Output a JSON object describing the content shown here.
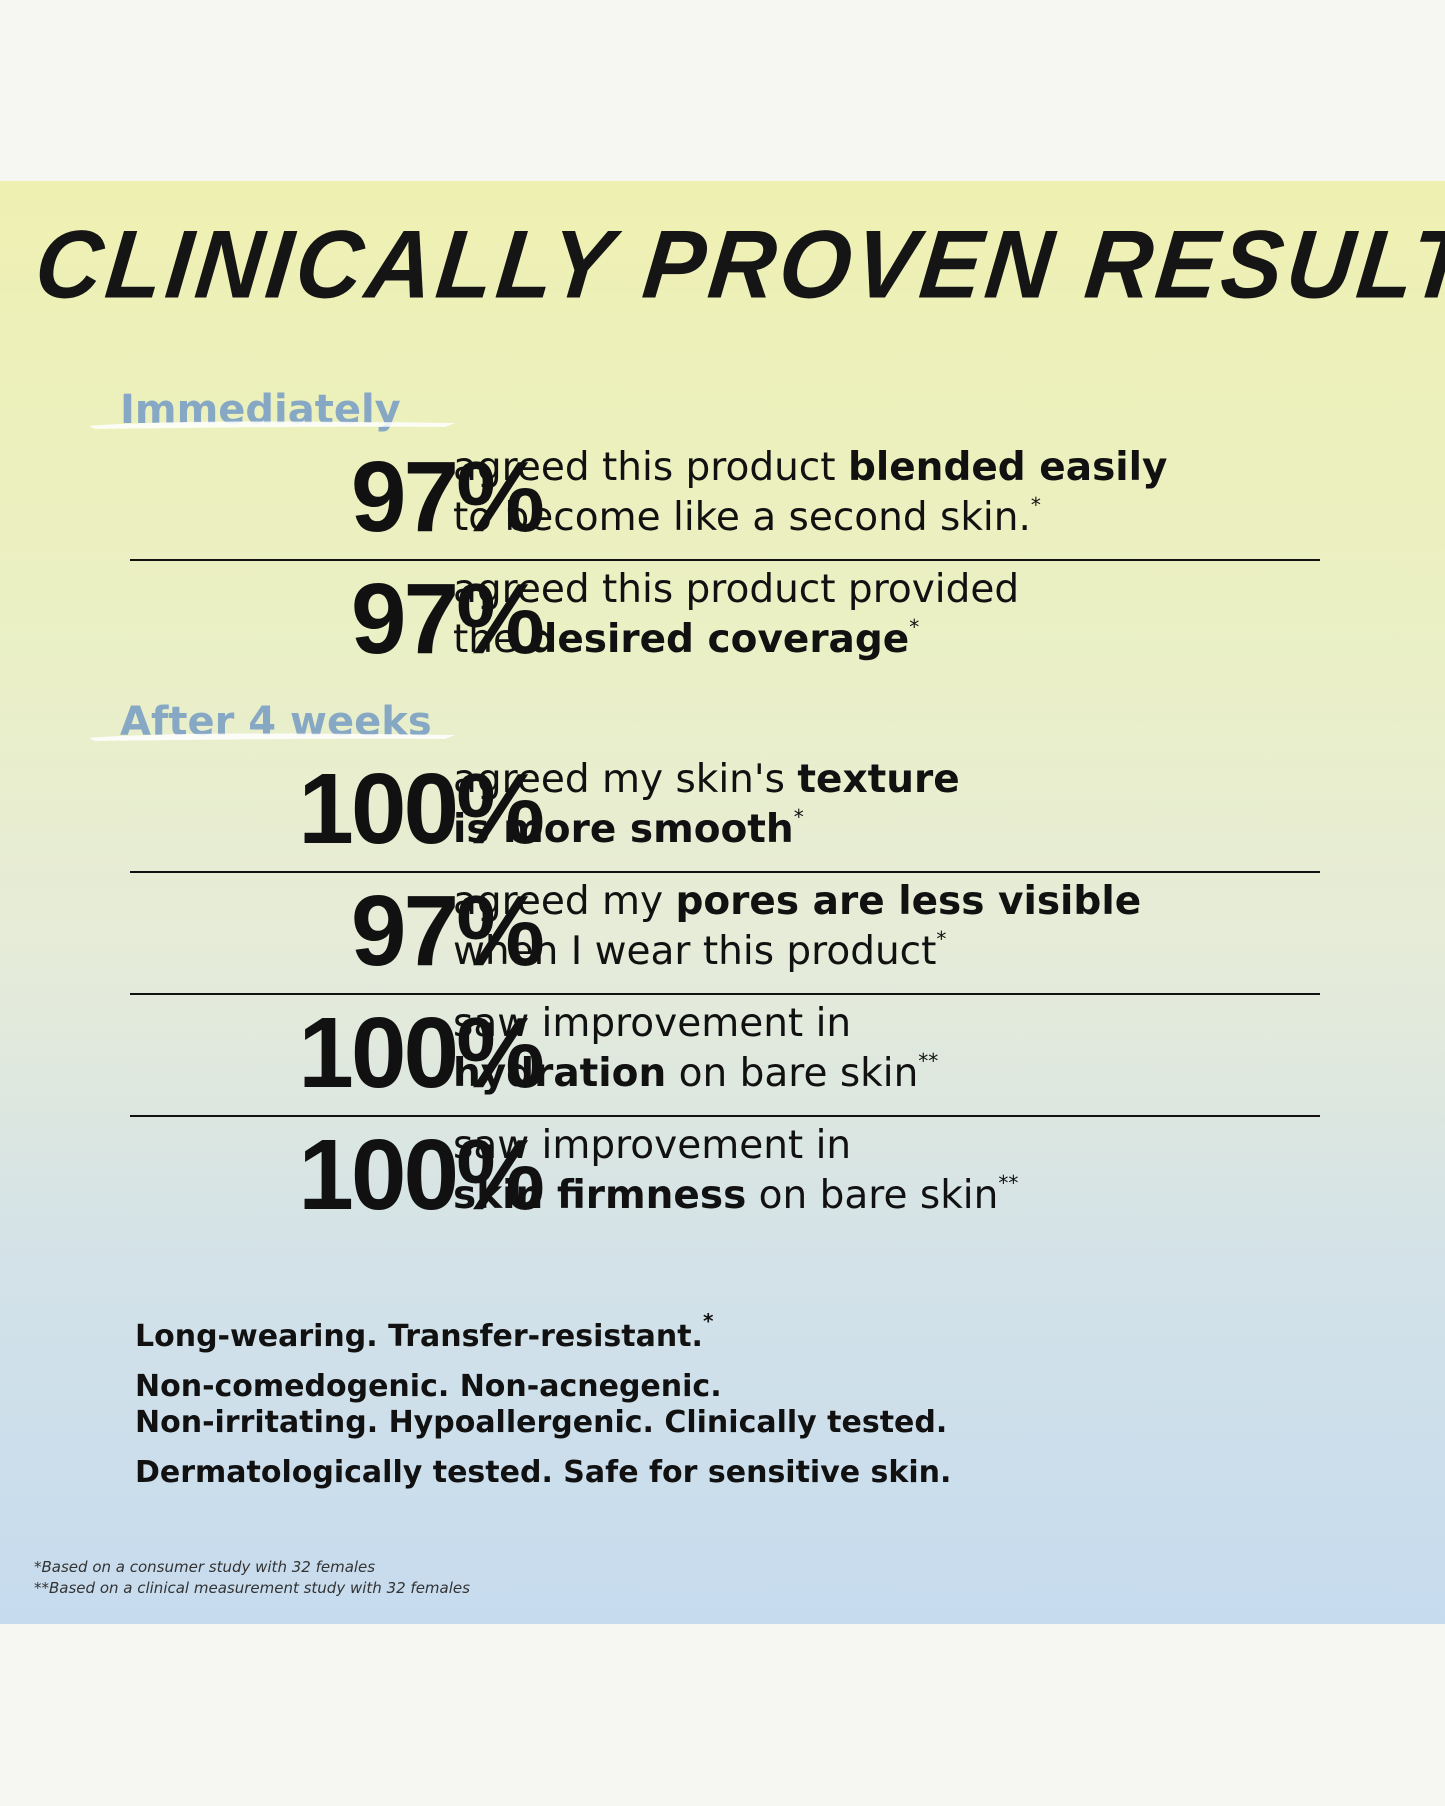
{
  "title": "CLINICALLY PROVEN RESULTS",
  "sections": [
    {
      "heading": "Immediately",
      "items": [
        {
          "stat": "97%",
          "lines": [
            [
              {
                "text": "agreed this product ",
                "bold": false
              },
              {
                "text": "blended easily",
                "bold": true
              }
            ],
            [
              {
                "text": "to become like a second skin.",
                "bold": false
              }
            ]
          ],
          "note": "*"
        },
        {
          "stat": "97%",
          "lines": [
            [
              {
                "text": "agreed this product provided",
                "bold": false
              }
            ],
            [
              {
                "text": "the ",
                "bold": false
              },
              {
                "text": "desired coverage",
                "bold": true
              }
            ]
          ],
          "note": "*"
        }
      ]
    },
    {
      "heading": "After 4 weeks",
      "items": [
        {
          "stat": "100%",
          "lines": [
            [
              {
                "text": "agreed my skin's ",
                "bold": false
              },
              {
                "text": "texture",
                "bold": true
              }
            ],
            [
              {
                "text": "is more smooth",
                "bold": true
              }
            ]
          ],
          "note": "*"
        },
        {
          "stat": "97%",
          "lines": [
            [
              {
                "text": "agreed my ",
                "bold": false
              },
              {
                "text": "pores are less visible",
                "bold": true
              }
            ],
            [
              {
                "text": "when I wear this product",
                "bold": false
              }
            ]
          ],
          "note": "*"
        },
        {
          "stat": "100%",
          "lines": [
            [
              {
                "text": "saw improvement in",
                "bold": false
              }
            ],
            [
              {
                "text": "hydration",
                "bold": true
              },
              {
                "text": " on bare skin",
                "bold": false
              }
            ]
          ],
          "note": "**"
        },
        {
          "stat": "100%",
          "lines": [
            [
              {
                "text": "saw improvement in",
                "bold": false
              }
            ],
            [
              {
                "text": "skin firmness",
                "bold": true
              },
              {
                "text": " on bare skin",
                "bold": false
              }
            ]
          ],
          "note": "**"
        }
      ]
    }
  ],
  "claims": [
    {
      "text": "Long-wearing. Transfer-resistant.",
      "note": "*"
    },
    {
      "text": "Non-comedogenic. Non-acnegenic."
    },
    {
      "text": "Non-irritating. Hypoallergenic. Clinically tested."
    },
    {
      "text": "Dermatologically tested. Safe for sensitive skin."
    }
  ],
  "footnotes": [
    "*Based on a consumer study with 32 females",
    "**Based on a clinical measurement study with 32 females"
  ]
}
